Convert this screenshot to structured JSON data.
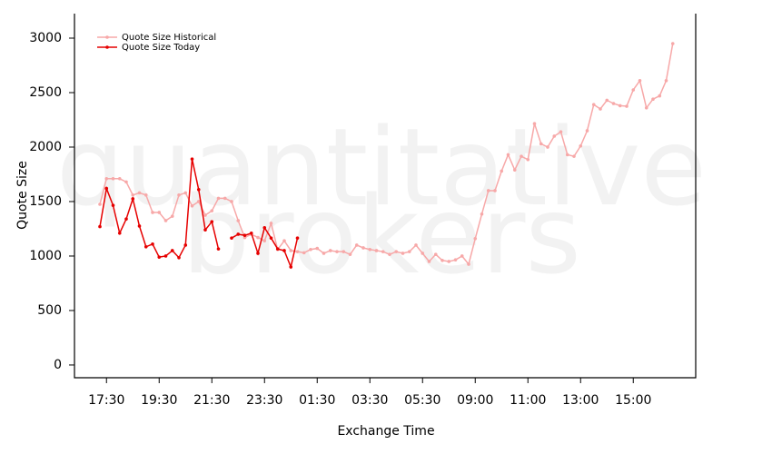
{
  "chart_data": {
    "type": "line",
    "watermark": [
      "quantitative",
      "brokers"
    ],
    "xlabel": "Exchange Time",
    "ylabel": "Quote Size",
    "categories": [
      null,
      "17:30",
      null,
      null,
      null,
      null,
      null,
      null,
      null,
      "19:30",
      null,
      null,
      null,
      null,
      null,
      null,
      null,
      "21:30",
      null,
      null,
      null,
      null,
      null,
      null,
      null,
      "23:30",
      null,
      null,
      null,
      null,
      null,
      null,
      null,
      "01:30",
      null,
      null,
      null,
      null,
      null,
      null,
      null,
      "03:30",
      null,
      null,
      null,
      null,
      null,
      null,
      null,
      "05:30",
      null,
      null,
      null,
      null,
      null,
      null,
      null,
      "09:00",
      null,
      null,
      null,
      null,
      null,
      null,
      null,
      "11:00",
      null,
      null,
      null,
      null,
      null,
      null,
      null,
      "13:00",
      null,
      null,
      null,
      null,
      null,
      null,
      null,
      "15:00",
      null,
      null,
      null,
      null,
      null,
      null
    ],
    "series": [
      {
        "name": "Quote Size Historical",
        "color": "#f7a8a8",
        "values": [
          1475,
          1710,
          1710,
          1710,
          1680,
          1560,
          1580,
          1560,
          1400,
          1400,
          1325,
          1365,
          1560,
          1580,
          1460,
          1500,
          1375,
          1415,
          1530,
          1530,
          1500,
          1325,
          1170,
          1200,
          1170,
          1140,
          1300,
          1060,
          1140,
          1050,
          1040,
          1030,
          1060,
          1070,
          1025,
          1050,
          1040,
          1040,
          1015,
          1100,
          1075,
          1060,
          1050,
          1040,
          1015,
          1040,
          1025,
          1040,
          1100,
          1025,
          950,
          1015,
          960,
          950,
          965,
          1000,
          925,
          1160,
          1385,
          1600,
          1600,
          1780,
          1930,
          1790,
          1915,
          1885,
          2215,
          2030,
          2000,
          2100,
          2140,
          1930,
          1915,
          2010,
          2150,
          2390,
          2350,
          2430,
          2400,
          2380,
          2375,
          2525,
          2610,
          2360,
          2440,
          2470,
          2610,
          2950
        ]
      },
      {
        "name": "Quote Size Today",
        "color": "#e60000",
        "values": [
          1270,
          1620,
          1465,
          1210,
          1340,
          1525,
          1275,
          1085,
          1110,
          990,
          1000,
          1050,
          985,
          1100,
          1890,
          1610,
          1240,
          1315,
          1065,
          null,
          1165,
          1200,
          1190,
          1210,
          1025,
          1260,
          1165,
          1065,
          1050,
          900,
          1165,
          null,
          null,
          null,
          null,
          null,
          null,
          null,
          null,
          null,
          null,
          null,
          null,
          null,
          null,
          null,
          null,
          null,
          null,
          null,
          null,
          null,
          null,
          null,
          null,
          null,
          null,
          null,
          null,
          null,
          null,
          null,
          null,
          null,
          null,
          null,
          null,
          null,
          null,
          null,
          null,
          null,
          null,
          null,
          null,
          null,
          null,
          null,
          null,
          null,
          null,
          null,
          null,
          null,
          null,
          null,
          null,
          null
        ]
      }
    ],
    "ylim": [
      -117,
      3225
    ],
    "yticks": [
      0,
      500,
      1000,
      1500,
      2000,
      2500,
      3000
    ],
    "legend": "top-left"
  }
}
